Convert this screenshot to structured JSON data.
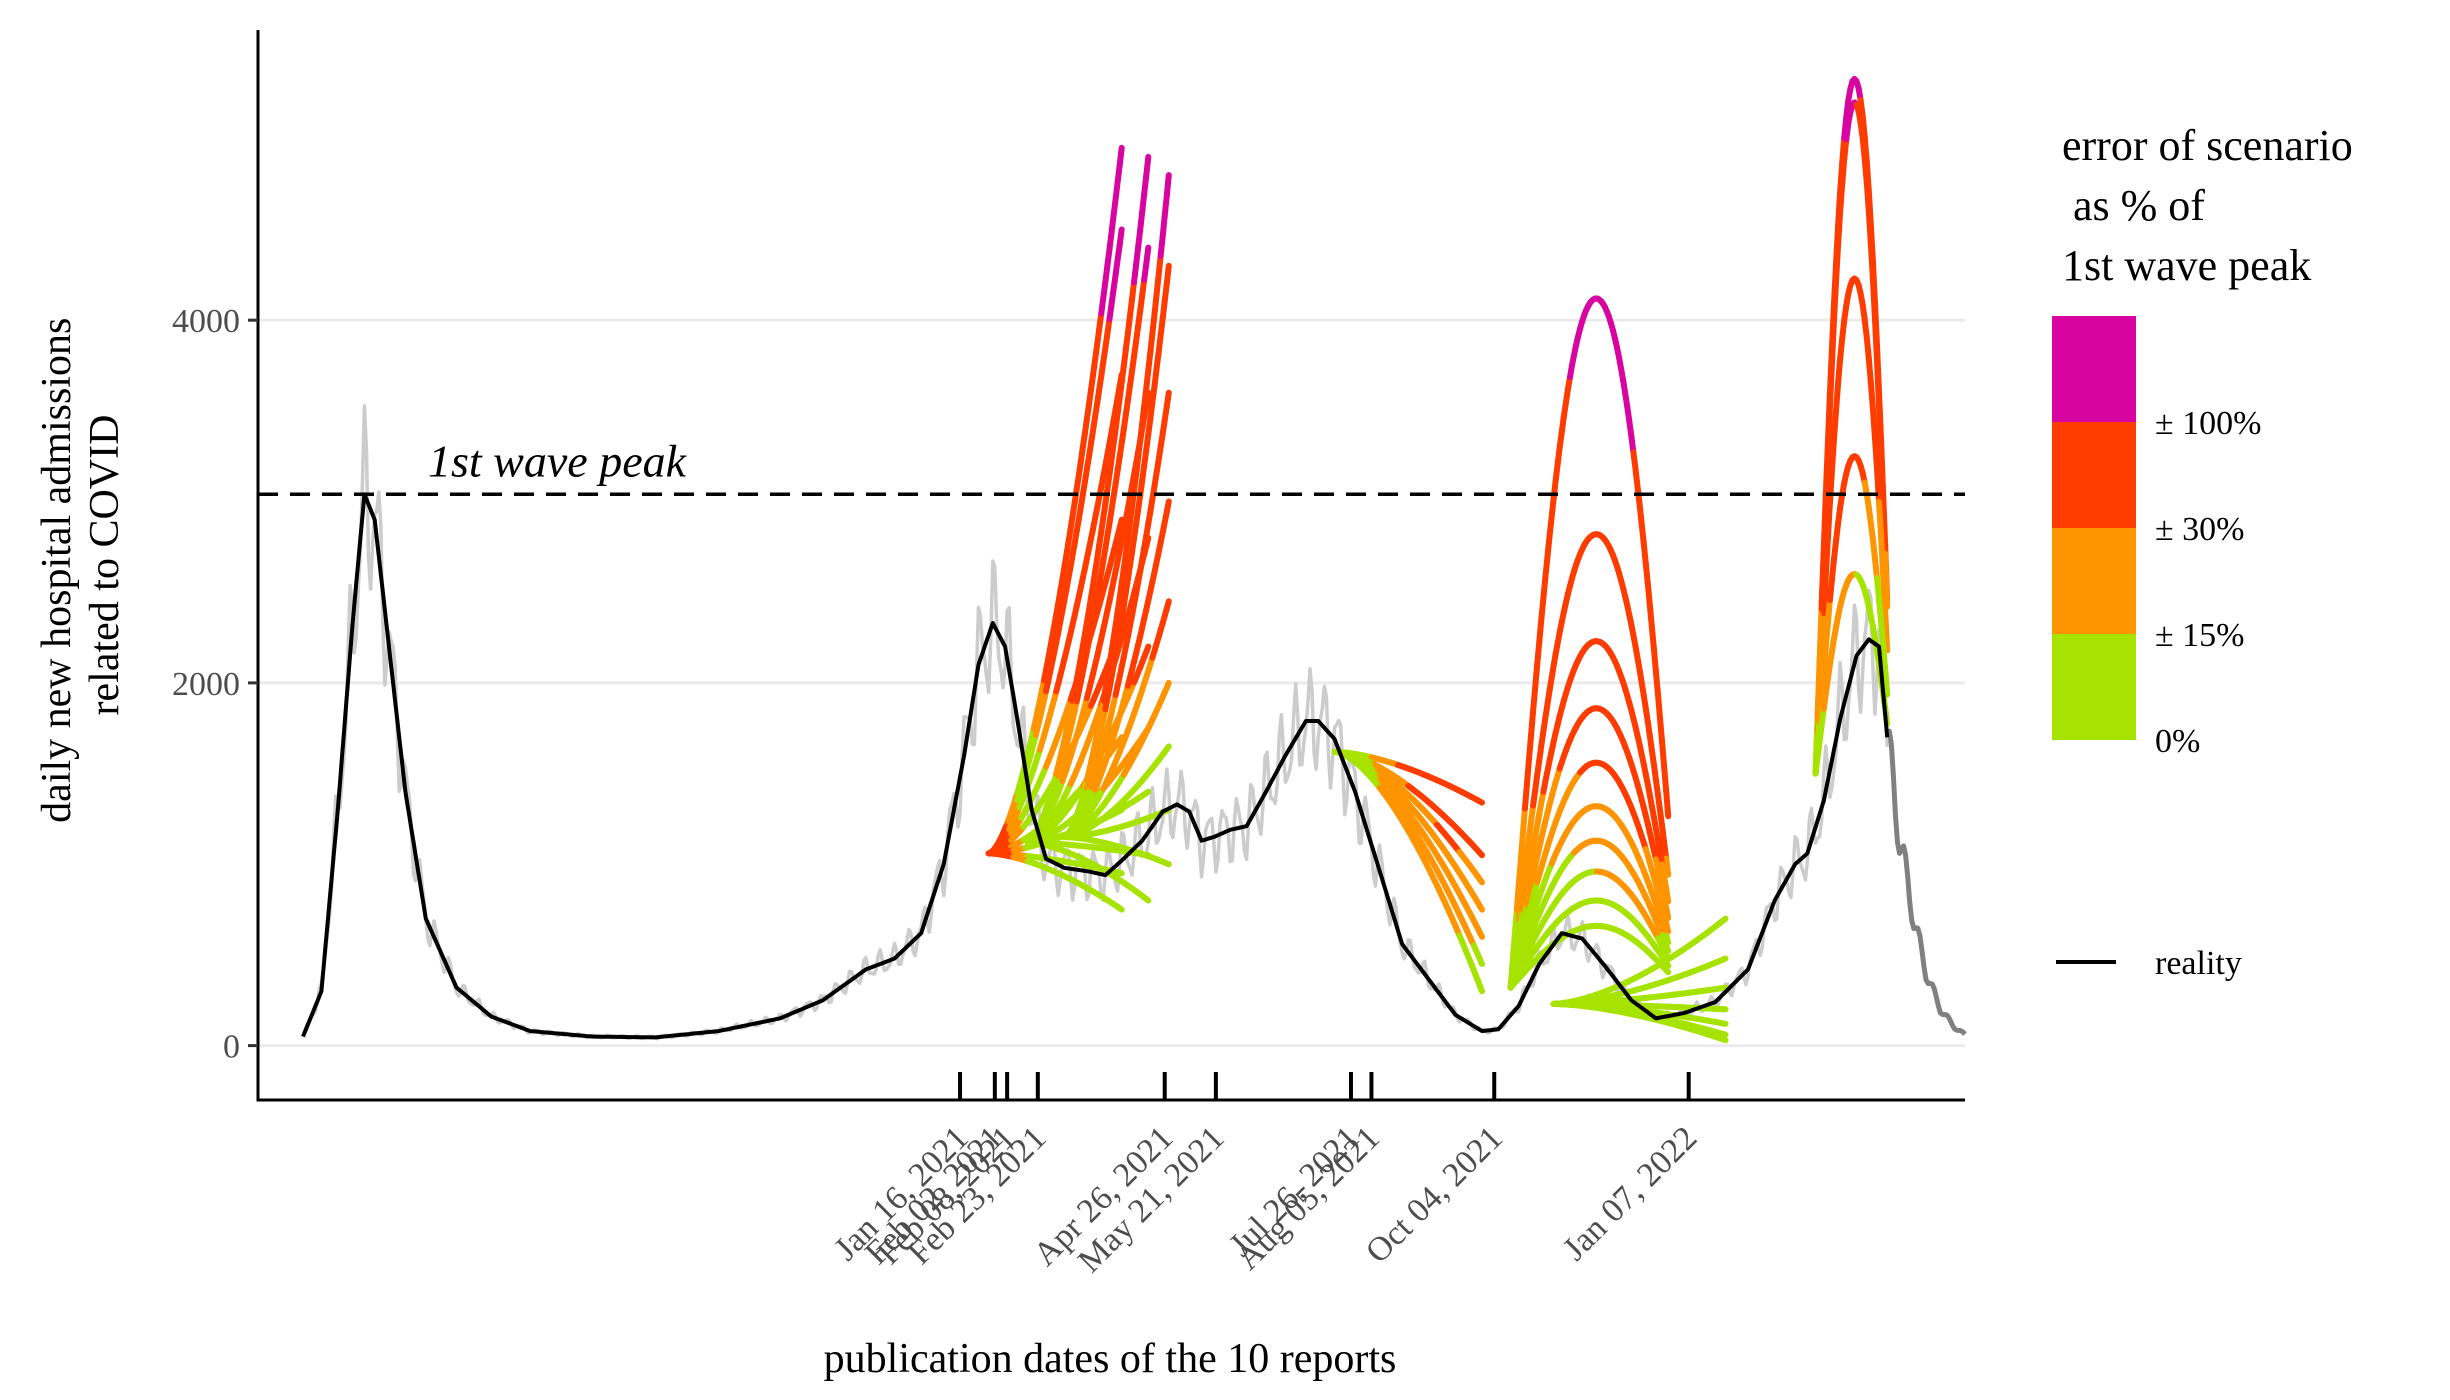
{
  "chart_data": {
    "type": "line",
    "xlabel": "publication dates of the 10 reports",
    "ylabel_lines": [
      "daily new hospital admissions",
      "related to COVID"
    ],
    "yticks": [
      0,
      2000,
      4000
    ],
    "ylim": [
      -300,
      5600
    ],
    "xlim": [
      "2020-02-08",
      "2022-05-22"
    ],
    "grid": true,
    "reference_line": {
      "label": "1st wave peak",
      "value": 3040
    },
    "report_dates": [
      {
        "date": "2021-01-16",
        "label": "Jan 16, 2021"
      },
      {
        "date": "2021-02-02",
        "label": "Feb 02, 2021"
      },
      {
        "date": "2021-02-08",
        "label": "Feb 08, 2021"
      },
      {
        "date": "2021-02-23",
        "label": "Feb 23, 2021"
      },
      {
        "date": "2021-04-26",
        "label": "Apr 26, 2021"
      },
      {
        "date": "2021-05-21",
        "label": "May 21, 2021"
      },
      {
        "date": "2021-07-26",
        "label": "Jul 26, 2021"
      },
      {
        "date": "2021-08-05",
        "label": "Aug 05, 2021"
      },
      {
        "date": "2021-10-04",
        "label": "Oct 04, 2021"
      },
      {
        "date": "2022-01-07",
        "label": "Jan 07, 2022"
      }
    ],
    "legend": {
      "title_lines": [
        "error of scenario",
        " as % of",
        "1st wave peak"
      ],
      "placement": "right",
      "color_scale": [
        {
          "color": "#d8049f",
          "label": ""
        },
        {
          "color": "#fe3c00",
          "label": "± 100%"
        },
        {
          "color": "#fe9400",
          "label": "± 30%"
        },
        {
          "color": "#a6e300",
          "label": "± 15%"
        }
      ],
      "zero_label": "0%",
      "line_entry": {
        "label": "reality",
        "color": "#000000"
      }
    },
    "colors": {
      "raw_daily": "#cccccc",
      "raw_daily_future": "#808080",
      "smoothed": "#000000",
      "green": "#a6e300",
      "orange": "#fe9400",
      "red": "#fe3c00",
      "magenta": "#d8049f"
    },
    "reality_smoothed": [
      [
        "2020-03-01",
        50
      ],
      [
        "2020-03-10",
        300
      ],
      [
        "2020-03-18",
        1300
      ],
      [
        "2020-03-25",
        2300
      ],
      [
        "2020-03-31",
        3040
      ],
      [
        "2020-04-05",
        2900
      ],
      [
        "2020-04-12",
        2200
      ],
      [
        "2020-04-20",
        1400
      ],
      [
        "2020-04-30",
        700
      ],
      [
        "2020-05-15",
        320
      ],
      [
        "2020-06-01",
        160
      ],
      [
        "2020-06-20",
        80
      ],
      [
        "2020-07-20",
        50
      ],
      [
        "2020-08-20",
        45
      ],
      [
        "2020-09-20",
        80
      ],
      [
        "2020-10-20",
        150
      ],
      [
        "2020-11-10",
        250
      ],
      [
        "2020-12-01",
        420
      ],
      [
        "2020-12-15",
        480
      ],
      [
        "2020-12-28",
        620
      ],
      [
        "2021-01-08",
        1000
      ],
      [
        "2021-01-18",
        1600
      ],
      [
        "2021-01-25",
        2100
      ],
      [
        "2021-02-01",
        2330
      ],
      [
        "2021-02-07",
        2200
      ],
      [
        "2021-02-13",
        1800
      ],
      [
        "2021-02-20",
        1300
      ],
      [
        "2021-02-27",
        1030
      ],
      [
        "2021-03-08",
        980
      ],
      [
        "2021-03-20",
        960
      ],
      [
        "2021-03-28",
        940
      ],
      [
        "2021-04-05",
        1020
      ],
      [
        "2021-04-15",
        1130
      ],
      [
        "2021-04-25",
        1290
      ],
      [
        "2021-05-02",
        1330
      ],
      [
        "2021-05-08",
        1290
      ],
      [
        "2021-05-14",
        1130
      ],
      [
        "2021-05-20",
        1150
      ],
      [
        "2021-05-28",
        1190
      ],
      [
        "2021-06-05",
        1210
      ],
      [
        "2021-06-14",
        1390
      ],
      [
        "2021-06-24",
        1600
      ],
      [
        "2021-07-04",
        1790
      ],
      [
        "2021-07-10",
        1790
      ],
      [
        "2021-07-18",
        1690
      ],
      [
        "2021-07-28",
        1400
      ],
      [
        "2021-08-08",
        1000
      ],
      [
        "2021-08-20",
        560
      ],
      [
        "2021-09-01",
        380
      ],
      [
        "2021-09-15",
        170
      ],
      [
        "2021-09-28",
        80
      ],
      [
        "2021-10-06",
        90
      ],
      [
        "2021-10-16",
        220
      ],
      [
        "2021-10-26",
        450
      ],
      [
        "2021-11-06",
        620
      ],
      [
        "2021-11-16",
        590
      ],
      [
        "2021-11-27",
        440
      ],
      [
        "2021-12-10",
        250
      ],
      [
        "2021-12-22",
        150
      ],
      [
        "2022-01-05",
        180
      ],
      [
        "2022-01-20",
        240
      ],
      [
        "2022-02-05",
        420
      ],
      [
        "2022-02-18",
        800
      ],
      [
        "2022-02-28",
        1000
      ],
      [
        "2022-03-06",
        1060
      ],
      [
        "2022-03-14",
        1350
      ],
      [
        "2022-03-22",
        1800
      ],
      [
        "2022-03-30",
        2150
      ],
      [
        "2022-04-05",
        2240
      ],
      [
        "2022-04-10",
        2200
      ],
      [
        "2022-04-14",
        1700
      ]
    ],
    "reality_future_raw": [
      [
        "2022-04-14",
        1700
      ],
      [
        "2022-04-20",
        1150
      ],
      [
        "2022-04-27",
        700
      ],
      [
        "2022-05-03",
        400
      ],
      [
        "2022-05-10",
        200
      ],
      [
        "2022-05-17",
        100
      ],
      [
        "2022-05-22",
        60
      ]
    ],
    "scenario_bundles": [
      {
        "start": [
          "2021-01-30",
          1060
        ],
        "end_date": "2021-04-05",
        "end_values": [
          4950,
          4500,
          3700,
          2900,
          2300,
          1700,
          1300,
          950,
          750
        ]
      },
      {
        "start": [
          "2021-02-18",
          1120
        ],
        "end_date": "2021-04-18",
        "end_values": [
          4900,
          4400,
          3600,
          2800,
          2200,
          1750,
          1400,
          1050,
          800
        ]
      },
      {
        "start": [
          "2021-03-08",
          1150
        ],
        "end_date": "2021-04-28",
        "end_values": [
          4800,
          4300,
          3600,
          3000,
          2450,
          2000,
          1650,
          1300,
          1000
        ]
      },
      {
        "start": [
          "2021-07-18",
          1620
        ],
        "end_date": "2021-09-28",
        "end_values": [
          1340,
          1050,
          900,
          750,
          600,
          450,
          300
        ]
      },
      {
        "start": [
          "2021-10-12",
          320
        ],
        "end_date": "2021-12-28",
        "peaks": [
          4120,
          2820,
          2230,
          1860,
          1560,
          1320,
          1130,
          960,
          800,
          660
        ]
      },
      {
        "start": [
          "2021-11-02",
          230
        ],
        "end_date": "2022-01-25",
        "end_values": [
          700,
          480,
          320,
          200,
          120,
          60,
          30
        ]
      },
      {
        "start": [
          "2022-03-10",
          1500
        ],
        "end_date": "2022-04-14",
        "peaks": [
          5330,
          5200,
          4230,
          3250,
          2600
        ]
      }
    ]
  }
}
